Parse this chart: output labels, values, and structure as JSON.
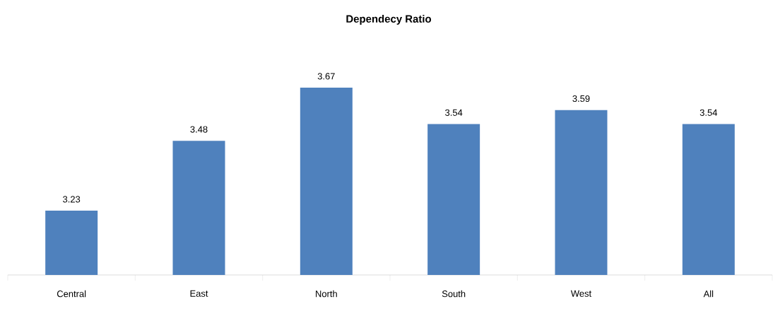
{
  "chart_data": {
    "type": "bar",
    "title": "Dependecy Ratio",
    "categories": [
      "Central",
      "East",
      "North",
      "South",
      "West",
      "All"
    ],
    "values": [
      3.23,
      3.48,
      3.67,
      3.54,
      3.59,
      3.54
    ],
    "color": "#4f81bd",
    "ylim": [
      3,
      3.67
    ],
    "data_labels": true,
    "tick_labels": "x"
  }
}
